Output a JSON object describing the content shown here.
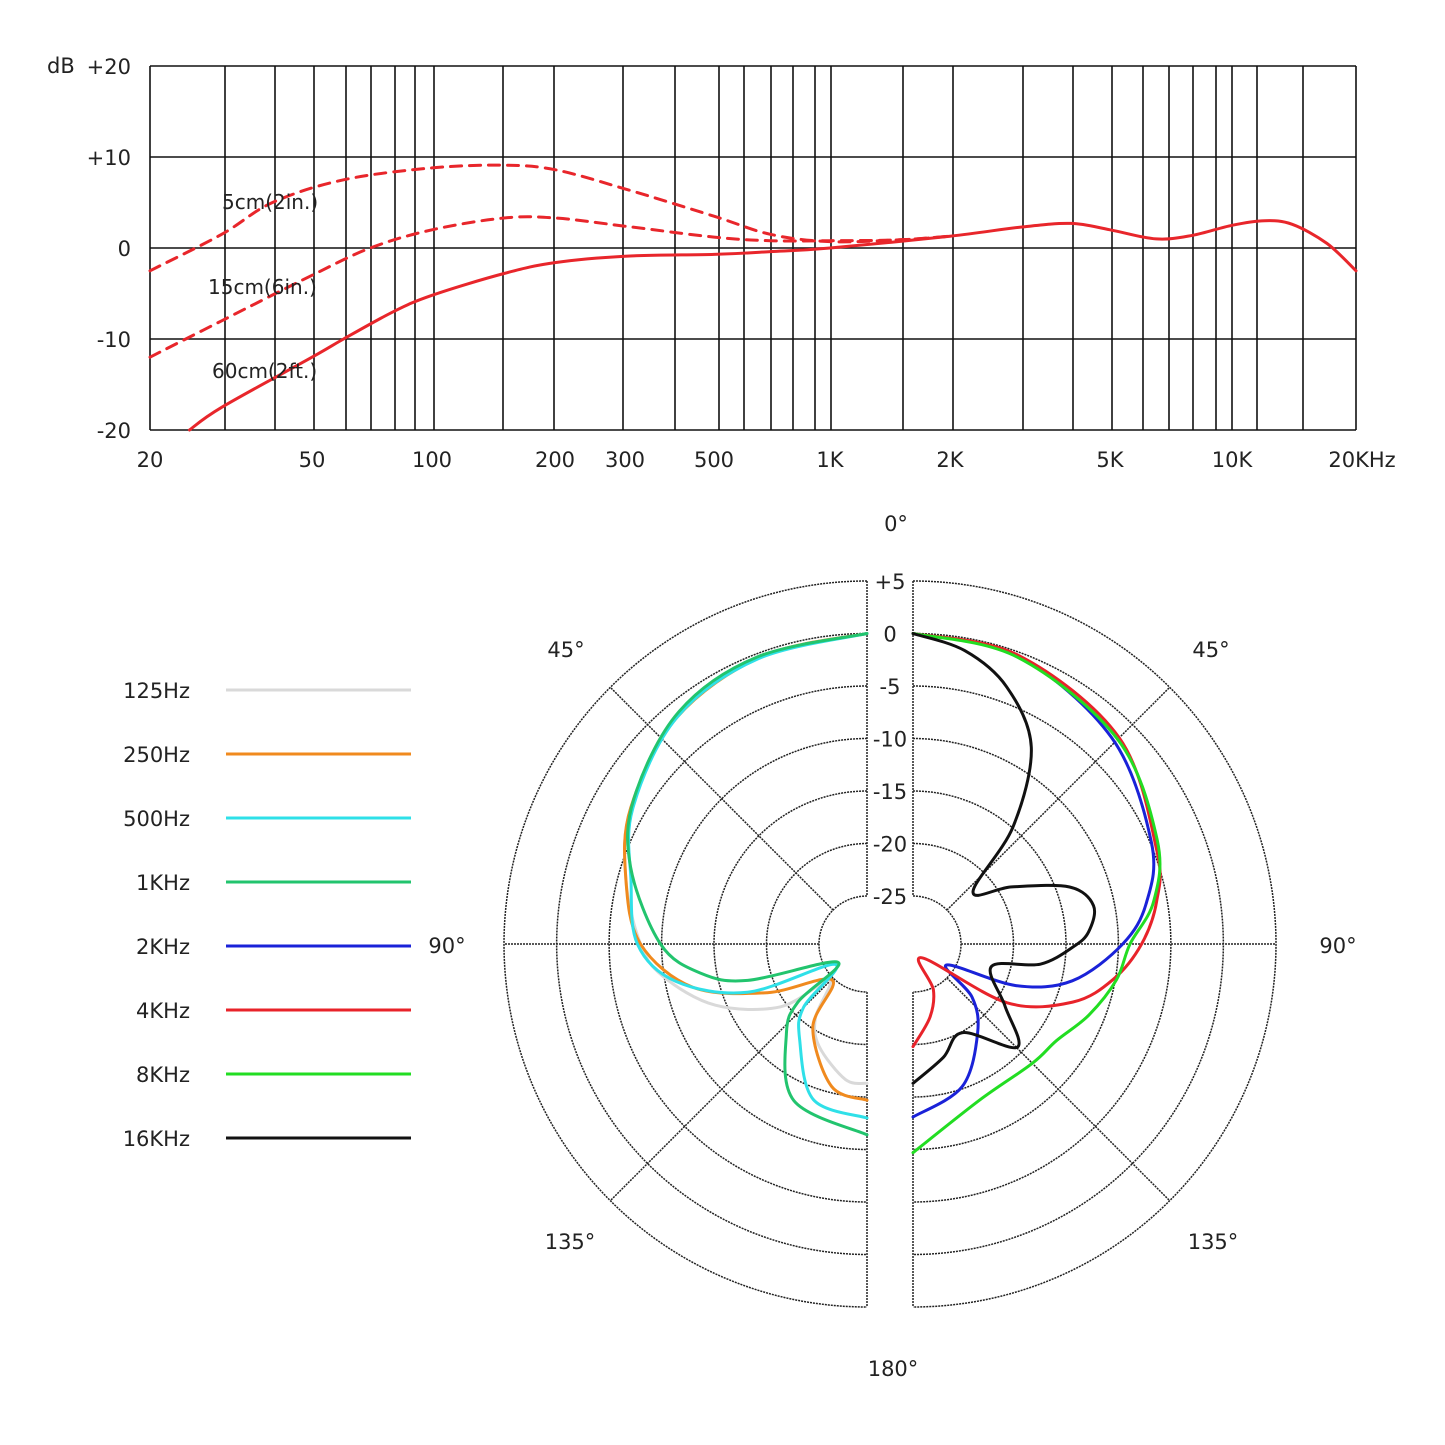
{
  "chart_data": [
    {
      "type": "line",
      "ylabel": "dB",
      "xscale": "log",
      "x_ticks": [
        "20",
        "50",
        "100",
        "200",
        "300",
        "500",
        "1K",
        "2K",
        "5K",
        "10K",
        "20KHz"
      ],
      "x_tick_values": [
        20,
        50,
        100,
        200,
        300,
        500,
        1000,
        2000,
        5000,
        10000,
        20000
      ],
      "y_ticks": [
        "+20",
        "+10",
        "0",
        "-10",
        "-20"
      ],
      "y_tick_values": [
        20,
        10,
        0,
        -10,
        -20
      ],
      "xlim": [
        20,
        20000
      ],
      "ylim": [
        -20,
        20
      ],
      "grid": true,
      "line_color": "#e8262b",
      "series": [
        {
          "name": "5cm(2in.)",
          "style": "dashed",
          "points": [
            [
              20,
              -2.5
            ],
            [
              30,
              1.5
            ],
            [
              40,
              5
            ],
            [
              60,
              7.5
            ],
            [
              100,
              8.8
            ],
            [
              150,
              9.1
            ],
            [
              200,
              8.6
            ],
            [
              300,
              6.5
            ],
            [
              500,
              3.5
            ],
            [
              700,
              1.5
            ],
            [
              1000,
              0.7
            ],
            [
              1500,
              0.9
            ],
            [
              2000,
              1.3
            ]
          ]
        },
        {
          "name": "15cm(6in.)",
          "style": "dashed",
          "points": [
            [
              20,
              -12
            ],
            [
              30,
              -8
            ],
            [
              50,
              -3
            ],
            [
              70,
              0
            ],
            [
              100,
              2
            ],
            [
              150,
              3.3
            ],
            [
              200,
              3.3
            ],
            [
              300,
              2.4
            ],
            [
              500,
              1.2
            ],
            [
              700,
              0.8
            ],
            [
              1000,
              0.8
            ],
            [
              1500,
              0.9
            ],
            [
              2000,
              1.3
            ]
          ]
        },
        {
          "name": "60cm(2ft.)",
          "style": "solid",
          "points": [
            [
              25,
              -20
            ],
            [
              30,
              -17.5
            ],
            [
              50,
              -12
            ],
            [
              60,
              -10
            ],
            [
              80,
              -7
            ],
            [
              100,
              -5.2
            ],
            [
              150,
              -2.8
            ],
            [
              200,
              -1.6
            ],
            [
              300,
              -0.9
            ],
            [
              500,
              -0.7
            ],
            [
              700,
              -0.4
            ],
            [
              1000,
              0
            ],
            [
              2000,
              1.3
            ],
            [
              3000,
              2.3
            ],
            [
              4000,
              2.7
            ],
            [
              5000,
              2.0
            ],
            [
              6500,
              1.0
            ],
            [
              8000,
              1.4
            ],
            [
              10000,
              2.5
            ],
            [
              12000,
              3.0
            ],
            [
              14000,
              2.6
            ],
            [
              17000,
              0.5
            ],
            [
              20000,
              -2.5
            ]
          ]
        }
      ]
    },
    {
      "type": "polar",
      "angle_labels": {
        "top": "0°",
        "left_45": "45°",
        "right_45": "45°",
        "left_90": "90°",
        "right_90": "90°",
        "left_135": "135°",
        "right_135": "135°",
        "bottom": "180°"
      },
      "radial_ticks": [
        "+5",
        "0",
        "-5",
        "-10",
        "-15",
        "-20",
        "-25"
      ],
      "radial_tick_values": [
        5,
        0,
        -5,
        -10,
        -15,
        -20,
        -25
      ],
      "rlim": [
        -25,
        5
      ],
      "series": [
        {
          "name": "125Hz",
          "color": "#d9d9d9",
          "side": "left",
          "points": [
            [
              0,
              0
            ],
            [
              20,
              -0.4
            ],
            [
              40,
              -1.4
            ],
            [
              60,
              -3.6
            ],
            [
              75,
              -5.8
            ],
            [
              90,
              -8
            ],
            [
              99,
              -9.9
            ],
            [
              112,
              -14
            ],
            [
              126,
              -19.4
            ],
            [
              134,
              -24.6
            ],
            [
              145,
              -21
            ],
            [
              155,
              -18.8
            ],
            [
              171,
              -16.5
            ],
            [
              180,
              -16.3
            ]
          ]
        },
        {
          "name": "250Hz",
          "color": "#f08a1e",
          "side": "left",
          "points": [
            [
              0,
              0
            ],
            [
              20,
              -0.4
            ],
            [
              40,
              -1.4
            ],
            [
              60,
              -3.6
            ],
            [
              75,
              -5.8
            ],
            [
              90,
              -8
            ],
            [
              104,
              -12.5
            ],
            [
              116,
              -19
            ],
            [
              136,
              -24.8
            ],
            [
              147,
              -20.1
            ],
            [
              166,
              -15.6
            ],
            [
              180,
              -14.7
            ]
          ]
        },
        {
          "name": "500Hz",
          "color": "#2fe0e8",
          "side": "left",
          "points": [
            [
              0,
              0
            ],
            [
              21,
              -0.5
            ],
            [
              40,
              -1.4
            ],
            [
              60,
              -3.8
            ],
            [
              75,
              -6.3
            ],
            [
              90,
              -7.7
            ],
            [
              101,
              -11
            ],
            [
              112,
              -17.3
            ],
            [
              123,
              -26
            ],
            [
              135,
              -21
            ],
            [
              145,
              -18.4
            ],
            [
              161,
              -13.9
            ],
            [
              180,
              -13
            ]
          ]
        },
        {
          "name": "1KHz",
          "color": "#22c46e",
          "side": "left",
          "points": [
            [
              0,
              0
            ],
            [
              21,
              -0.3
            ],
            [
              39,
              -1.1
            ],
            [
              58,
              -3.4
            ],
            [
              72,
              -5.9
            ],
            [
              90,
              -9.9
            ],
            [
              100,
              -13.5
            ],
            [
              107,
              -17.7
            ],
            [
              122,
              -26.3
            ],
            [
              130,
              -21
            ],
            [
              138,
              -18.1
            ],
            [
              155,
              -13.1
            ],
            [
              180,
              -11.4
            ]
          ]
        },
        {
          "name": "2KHz",
          "color": "#1a22d8",
          "side": "right",
          "points": [
            [
              0,
              0
            ],
            [
              20,
              -0.4
            ],
            [
              44,
              -2.3
            ],
            [
              67,
              -4.9
            ],
            [
              80,
              -7
            ],
            [
              90,
              -9.6
            ],
            [
              103,
              -14
            ],
            [
              112,
              -19
            ],
            [
              122,
              -25.8
            ],
            [
              132,
              -22
            ],
            [
              144,
              -19.1
            ],
            [
              161,
              -15.2
            ],
            [
              180,
              -13.1
            ]
          ]
        },
        {
          "name": "4KHz",
          "color": "#e8232a",
          "side": "right",
          "points": [
            [
              0,
              0
            ],
            [
              20,
              -0.3
            ],
            [
              45,
              -1.8
            ],
            [
              69,
              -4.7
            ],
            [
              80,
              -6
            ],
            [
              90,
              -7.8
            ],
            [
              100,
              -10.2
            ],
            [
              110,
              -13.4
            ],
            [
              122,
              -19
            ],
            [
              147,
              -28
            ],
            [
              156,
              -24.8
            ],
            [
              167,
              -22.4
            ],
            [
              180,
              -19.8
            ]
          ]
        },
        {
          "name": "8KHz",
          "color": "#22dd22",
          "side": "right",
          "points": [
            [
              0,
              0
            ],
            [
              20,
              -0.5
            ],
            [
              45,
              -2
            ],
            [
              67,
              -4.3
            ],
            [
              80,
              -6.3
            ],
            [
              90,
              -8.9
            ],
            [
              100,
              -9.9
            ],
            [
              112,
              -11.5
            ],
            [
              124,
              -13.1
            ],
            [
              135,
              -13.5
            ],
            [
              157,
              -13.4
            ],
            [
              180,
              -9.7
            ]
          ]
        },
        {
          "name": "16KHz",
          "color": "#111111",
          "side": "right",
          "points": [
            [
              0,
              0
            ],
            [
              10,
              -1.2
            ],
            [
              20,
              -3.5
            ],
            [
              31,
              -7.7
            ],
            [
              40.5,
              -14.9
            ],
            [
              49,
              -22
            ],
            [
              60,
              -18.7
            ],
            [
              70,
              -13.7
            ],
            [
              78,
              -12
            ],
            [
              86,
              -12.8
            ],
            [
              91,
              -14.3
            ],
            [
              99,
              -17.3
            ],
            [
              106,
              -21.8
            ],
            [
              124,
              -19
            ],
            [
              134.7,
              -15.6
            ],
            [
              150.7,
              -19.9
            ],
            [
              165,
              -18.4
            ],
            [
              180,
              -16.3
            ]
          ]
        }
      ]
    }
  ]
}
